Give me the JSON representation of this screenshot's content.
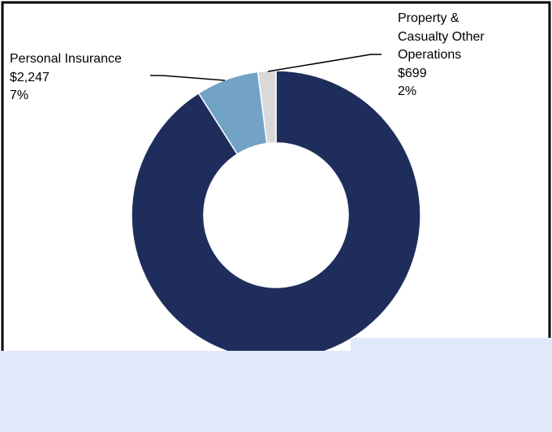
{
  "chart_data": {
    "type": "pie",
    "categories": [
      null,
      "Personal Insurance",
      "Property & Casualty Other Operations"
    ],
    "values": [
      91,
      7,
      2
    ],
    "value_labels": [
      null,
      "7%",
      "2%"
    ],
    "amount_labels": [
      null,
      "$2,247",
      "$699"
    ],
    "colors": [
      "#1e2d5c",
      "#72a3c6",
      "#d9d9d9"
    ],
    "hole": true
  }
}
